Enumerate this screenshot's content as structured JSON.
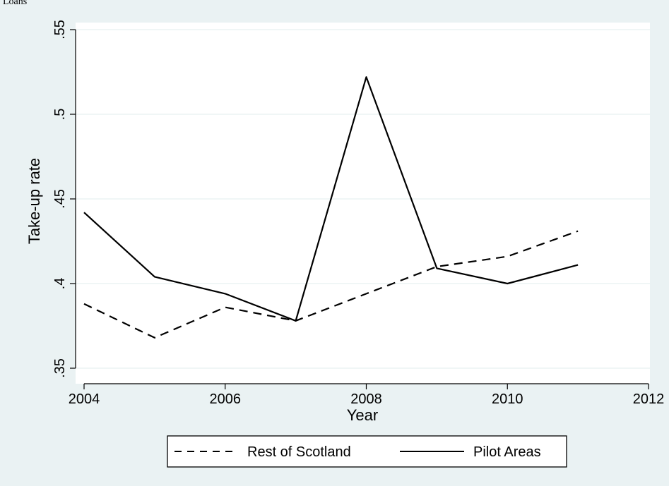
{
  "header_text": "Loans",
  "chart_data": {
    "type": "line",
    "title": "",
    "xlabel": "Year",
    "ylabel": "Take-up rate",
    "xlim": [
      2004,
      2012
    ],
    "ylim": [
      0.35,
      0.55
    ],
    "x_ticks": [
      2004,
      2006,
      2008,
      2010,
      2012
    ],
    "x_tick_labels": [
      "2004",
      "2006",
      "2008",
      "2010",
      "2012"
    ],
    "y_ticks": [
      0.35,
      0.4,
      0.45,
      0.5,
      0.55
    ],
    "y_tick_labels": [
      ".35",
      ".4",
      ".45",
      ".5",
      ".55"
    ],
    "grid": true,
    "legend_position": "bottom",
    "series": [
      {
        "name": "Rest of Scotland",
        "style": "dashed",
        "color": "#000000",
        "x": [
          2004,
          2005,
          2006,
          2007,
          2008,
          2009,
          2010,
          2011
        ],
        "y": [
          0.388,
          0.368,
          0.386,
          0.378,
          0.394,
          0.41,
          0.416,
          0.431
        ]
      },
      {
        "name": "Pilot Areas",
        "style": "solid",
        "color": "#000000",
        "x": [
          2004,
          2005,
          2006,
          2007,
          2008,
          2009,
          2010,
          2011
        ],
        "y": [
          0.442,
          0.404,
          0.394,
          0.378,
          0.522,
          0.409,
          0.4,
          0.411
        ]
      }
    ]
  },
  "colors": {
    "background": "#eaf2f3",
    "plot_background": "#ffffff",
    "grid": "#e8f0f0",
    "line": "#000000"
  }
}
